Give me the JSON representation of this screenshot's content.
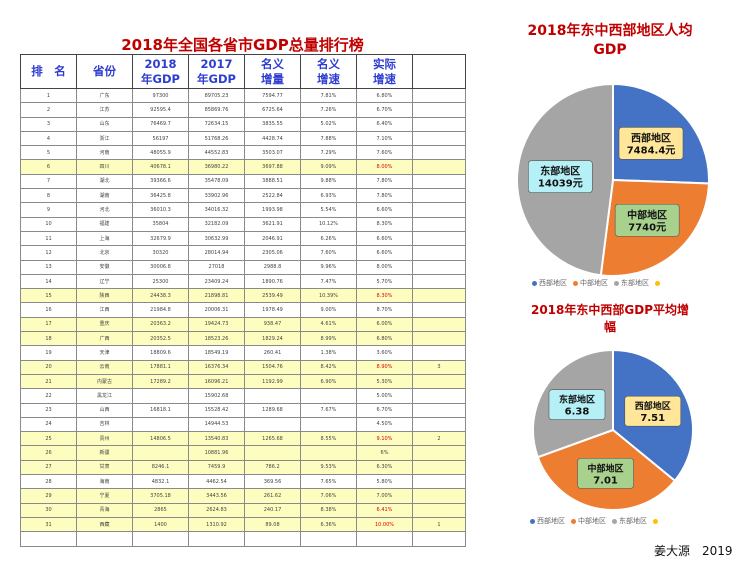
{
  "table_title": "2018年全国各省市GDP总量排行榜",
  "columns": [
    {
      "line1": "排　名",
      "line2": ""
    },
    {
      "line1": "省份",
      "line2": ""
    },
    {
      "line1": "2018",
      "line2": "年GDP"
    },
    {
      "line1": "2017",
      "line2": "年GDP"
    },
    {
      "line1": "名义",
      "line2": "增量"
    },
    {
      "line1": "名义",
      "line2": "增速"
    },
    {
      "line1": "实际",
      "line2": "增速"
    },
    {
      "line1": "",
      "line2": ""
    }
  ],
  "rows": [
    {
      "rank": "1",
      "province": "广东",
      "gdp2018": "97300",
      "gdp2017": "89705.23",
      "increment": "7594.77",
      "nominal": "7.81%",
      "real": "6.80%",
      "extra": "",
      "hl": false
    },
    {
      "rank": "2",
      "province": "江苏",
      "gdp2018": "92595.4",
      "gdp2017": "85869.76",
      "increment": "6725.64",
      "nominal": "7.26%",
      "real": "6.70%",
      "extra": "",
      "hl": false
    },
    {
      "rank": "3",
      "province": "山东",
      "gdp2018": "76469.7",
      "gdp2017": "72634.15",
      "increment": "3835.55",
      "nominal": "5.02%",
      "real": "6.40%",
      "extra": "",
      "hl": false
    },
    {
      "rank": "4",
      "province": "浙江",
      "gdp2018": "56197",
      "gdp2017": "51768.26",
      "increment": "4428.74",
      "nominal": "7.88%",
      "real": "7.10%",
      "extra": "",
      "hl": false
    },
    {
      "rank": "5",
      "province": "河南",
      "gdp2018": "48055.9",
      "gdp2017": "44552.83",
      "increment": "3503.07",
      "nominal": "7.29%",
      "real": "7.60%",
      "extra": "",
      "hl": false
    },
    {
      "rank": "6",
      "province": "四川",
      "gdp2018": "40678.1",
      "gdp2017": "36980.22",
      "increment": "3697.88",
      "nominal": "9.09%",
      "real": "8.00%",
      "extra": "",
      "hl": true,
      "red": true
    },
    {
      "rank": "7",
      "province": "湖北",
      "gdp2018": "39366.6",
      "gdp2017": "35478.09",
      "increment": "3888.51",
      "nominal": "9.88%",
      "real": "7.80%",
      "extra": "",
      "hl": false
    },
    {
      "rank": "8",
      "province": "湖南",
      "gdp2018": "36425.8",
      "gdp2017": "33902.96",
      "increment": "2522.84",
      "nominal": "6.93%",
      "real": "7.80%",
      "extra": "",
      "hl": false
    },
    {
      "rank": "9",
      "province": "河北",
      "gdp2018": "36010.3",
      "gdp2017": "34016.32",
      "increment": "1993.98",
      "nominal": "5.54%",
      "real": "6.60%",
      "extra": "",
      "hl": false
    },
    {
      "rank": "10",
      "province": "福建",
      "gdp2018": "35804",
      "gdp2017": "32182.09",
      "increment": "3621.91",
      "nominal": "10.12%",
      "real": "8.30%",
      "extra": "",
      "hl": false
    },
    {
      "rank": "11",
      "province": "上海",
      "gdp2018": "32679.9",
      "gdp2017": "30632.99",
      "increment": "2046.91",
      "nominal": "6.26%",
      "real": "6.60%",
      "extra": "",
      "hl": false
    },
    {
      "rank": "12",
      "province": "北京",
      "gdp2018": "30320",
      "gdp2017": "28014.94",
      "increment": "2305.06",
      "nominal": "7.60%",
      "real": "6.60%",
      "extra": "",
      "hl": false
    },
    {
      "rank": "13",
      "province": "安徽",
      "gdp2018": "30006.8",
      "gdp2017": "27018",
      "increment": "2988.8",
      "nominal": "9.96%",
      "real": "8.00%",
      "extra": "",
      "hl": false
    },
    {
      "rank": "14",
      "province": "辽宁",
      "gdp2018": "25300",
      "gdp2017": "23409.24",
      "increment": "1890.76",
      "nominal": "7.47%",
      "real": "5.70%",
      "extra": "",
      "hl": false
    },
    {
      "rank": "15",
      "province": "陕西",
      "gdp2018": "24438.3",
      "gdp2017": "21898.81",
      "increment": "2539.49",
      "nominal": "10.39%",
      "real": "8.30%",
      "extra": "",
      "hl": true,
      "red": true
    },
    {
      "rank": "16",
      "province": "江西",
      "gdp2018": "21984.8",
      "gdp2017": "20006.31",
      "increment": "1978.49",
      "nominal": "9.00%",
      "real": "8.70%",
      "extra": "",
      "hl": false
    },
    {
      "rank": "17",
      "province": "重庆",
      "gdp2018": "20363.2",
      "gdp2017": "19424.73",
      "increment": "938.47",
      "nominal": "4.61%",
      "real": "6.00%",
      "extra": "",
      "hl": true
    },
    {
      "rank": "18",
      "province": "广西",
      "gdp2018": "20352.5",
      "gdp2017": "18523.26",
      "increment": "1829.24",
      "nominal": "8.99%",
      "real": "6.80%",
      "extra": "",
      "hl": true
    },
    {
      "rank": "19",
      "province": "天津",
      "gdp2018": "18809.6",
      "gdp2017": "18549.19",
      "increment": "260.41",
      "nominal": "1.38%",
      "real": "3.60%",
      "extra": "",
      "hl": false
    },
    {
      "rank": "20",
      "province": "云南",
      "gdp2018": "17881.1",
      "gdp2017": "16376.34",
      "increment": "1504.76",
      "nominal": "8.42%",
      "real": "8.90%",
      "extra": "3",
      "hl": true,
      "red": true
    },
    {
      "rank": "21",
      "province": "内蒙古",
      "gdp2018": "17289.2",
      "gdp2017": "16096.21",
      "increment": "1192.99",
      "nominal": "6.90%",
      "real": "5.30%",
      "extra": "",
      "hl": true
    },
    {
      "rank": "22",
      "province": "黑龙江",
      "gdp2018": "",
      "gdp2017": "15902.68",
      "increment": "",
      "nominal": "",
      "real": "5.00%",
      "extra": "",
      "hl": false
    },
    {
      "rank": "23",
      "province": "山西",
      "gdp2018": "16818.1",
      "gdp2017": "15528.42",
      "increment": "1289.68",
      "nominal": "7.67%",
      "real": "6.70%",
      "extra": "",
      "hl": false
    },
    {
      "rank": "24",
      "province": "吉林",
      "gdp2018": "",
      "gdp2017": "14944.53",
      "increment": "",
      "nominal": "",
      "real": "4.50%",
      "extra": "",
      "hl": false
    },
    {
      "rank": "25",
      "province": "贵州",
      "gdp2018": "14806.5",
      "gdp2017": "13540.83",
      "increment": "1265.68",
      "nominal": "8.55%",
      "real": "9.10%",
      "extra": "2",
      "hl": true,
      "red": true
    },
    {
      "rank": "26",
      "province": "新疆",
      "gdp2018": "",
      "gdp2017": "10881.96",
      "increment": "",
      "nominal": "",
      "real": "6%",
      "extra": "",
      "hl": true
    },
    {
      "rank": "27",
      "province": "甘肃",
      "gdp2018": "8246.1",
      "gdp2017": "7459.9",
      "increment": "786.2",
      "nominal": "9.53%",
      "real": "6.30%",
      "extra": "",
      "hl": true
    },
    {
      "rank": "28",
      "province": "海南",
      "gdp2018": "4832.1",
      "gdp2017": "4462.54",
      "increment": "369.56",
      "nominal": "7.65%",
      "real": "5.80%",
      "extra": "",
      "hl": false
    },
    {
      "rank": "29",
      "province": "宁夏",
      "gdp2018": "3705.18",
      "gdp2017": "3443.56",
      "increment": "261.62",
      "nominal": "7.06%",
      "real": "7.00%",
      "extra": "",
      "hl": true
    },
    {
      "rank": "30",
      "province": "青海",
      "gdp2018": "2865",
      "gdp2017": "2624.83",
      "increment": "240.17",
      "nominal": "8.38%",
      "real": "6.41%",
      "extra": "",
      "hl": true,
      "red": true
    },
    {
      "rank": "31",
      "province": "西藏",
      "gdp2018": "1400",
      "gdp2017": "1310.92",
      "increment": "89.08",
      "nominal": "6.36%",
      "real": "10.00%",
      "extra": "1",
      "hl": true,
      "red": true
    },
    {
      "rank": "",
      "province": "",
      "gdp2018": "",
      "gdp2017": "",
      "increment": "",
      "nominal": "",
      "real": "",
      "extra": "",
      "hl": false
    }
  ],
  "colors": {
    "east": "#4472c4",
    "central": "#ed7d31",
    "west": "#a5a5a5",
    "legend4": "#ffc000",
    "label_east": "#ffe699",
    "label_central": "#a9d18e",
    "label_west": "#b4f0f6"
  },
  "chart_data": [
    {
      "type": "pie",
      "title": "2018年东中西部地区人均GDP",
      "categories": [
        "西部地区",
        "中部地区",
        "东部地区"
      ],
      "values": [
        7484.4,
        7740,
        14039
      ],
      "data_labels": [
        "7484.4元",
        "7740元",
        "14039元"
      ],
      "label_names": [
        "西部地区",
        "中部地区",
        "东部地区"
      ],
      "legend": [
        "西部地区",
        "中部地区",
        "东部地区",
        ""
      ],
      "legend_position": "bottom"
    },
    {
      "type": "pie",
      "title": "2018年东中西部GDP平均增幅",
      "categories": [
        "西部地区",
        "中部地区",
        "东部地区"
      ],
      "values": [
        7.51,
        7.01,
        6.38
      ],
      "data_labels": [
        "7.51",
        "7.01",
        "6.38"
      ],
      "label_names": [
        "西部地区",
        "中部地区",
        "东部地区"
      ],
      "legend": [
        "西部地区",
        "中部地区",
        "东部地区",
        ""
      ],
      "legend_position": "bottom"
    }
  ],
  "signature": "姜大源　2019"
}
